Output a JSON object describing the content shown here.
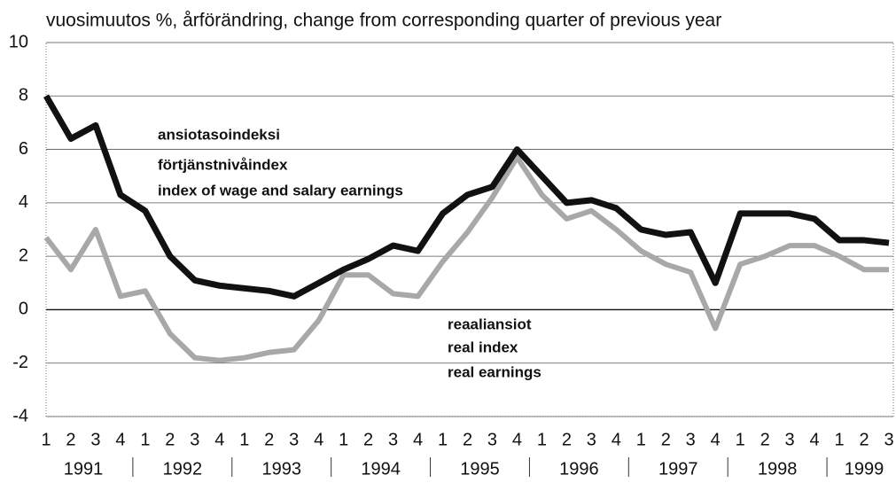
{
  "chart_data": {
    "type": "line",
    "title": "vuosimuutos %, årförändring, change from corresponding quarter of previous year",
    "categories": [
      "1",
      "2",
      "3",
      "4",
      "1",
      "2",
      "3",
      "4",
      "1",
      "2",
      "3",
      "4",
      "1",
      "2",
      "3",
      "4",
      "1",
      "2",
      "3",
      "4",
      "1",
      "2",
      "3",
      "4",
      "1",
      "2",
      "3",
      "4",
      "1",
      "2",
      "3",
      "4",
      "1",
      "2",
      "3"
    ],
    "years": [
      "1991",
      "1992",
      "1993",
      "1994",
      "1995",
      "1996",
      "1997",
      "1998",
      "1999"
    ],
    "series": [
      {
        "name": "ansiotasoindeksi",
        "color": "#111111",
        "values": [
          8.0,
          6.4,
          6.9,
          4.3,
          3.7,
          2.0,
          1.1,
          0.9,
          0.8,
          0.7,
          0.5,
          1.0,
          1.5,
          1.9,
          2.4,
          2.2,
          3.6,
          4.3,
          4.6,
          6.0,
          5.0,
          4.0,
          4.1,
          3.8,
          3.0,
          2.8,
          2.9,
          1.0,
          3.6,
          3.6,
          3.6,
          3.4,
          2.6,
          2.6,
          2.5
        ]
      },
      {
        "name": "reaaliansiot",
        "color": "#a8a8a8",
        "values": [
          2.7,
          1.5,
          3.0,
          0.5,
          0.7,
          -0.9,
          -1.8,
          -1.9,
          -1.8,
          -1.6,
          -1.5,
          -0.4,
          1.3,
          1.3,
          0.6,
          0.5,
          1.8,
          2.9,
          4.2,
          5.7,
          4.3,
          3.4,
          3.7,
          3.0,
          2.2,
          1.7,
          1.4,
          -0.7,
          1.7,
          2.0,
          2.4,
          2.4,
          2.0,
          1.5,
          1.5
        ]
      }
    ],
    "annotations": [
      [
        "ansiotasoindeksi",
        "förtjänstnivåindex",
        "index of wage and salary earnings"
      ],
      [
        "reaaliansiot",
        "real index",
        "real earnings"
      ]
    ],
    "ylim": [
      -4,
      10
    ],
    "yticks": [
      -4,
      -2,
      0,
      2,
      4,
      6,
      8,
      10
    ],
    "grid": true
  }
}
